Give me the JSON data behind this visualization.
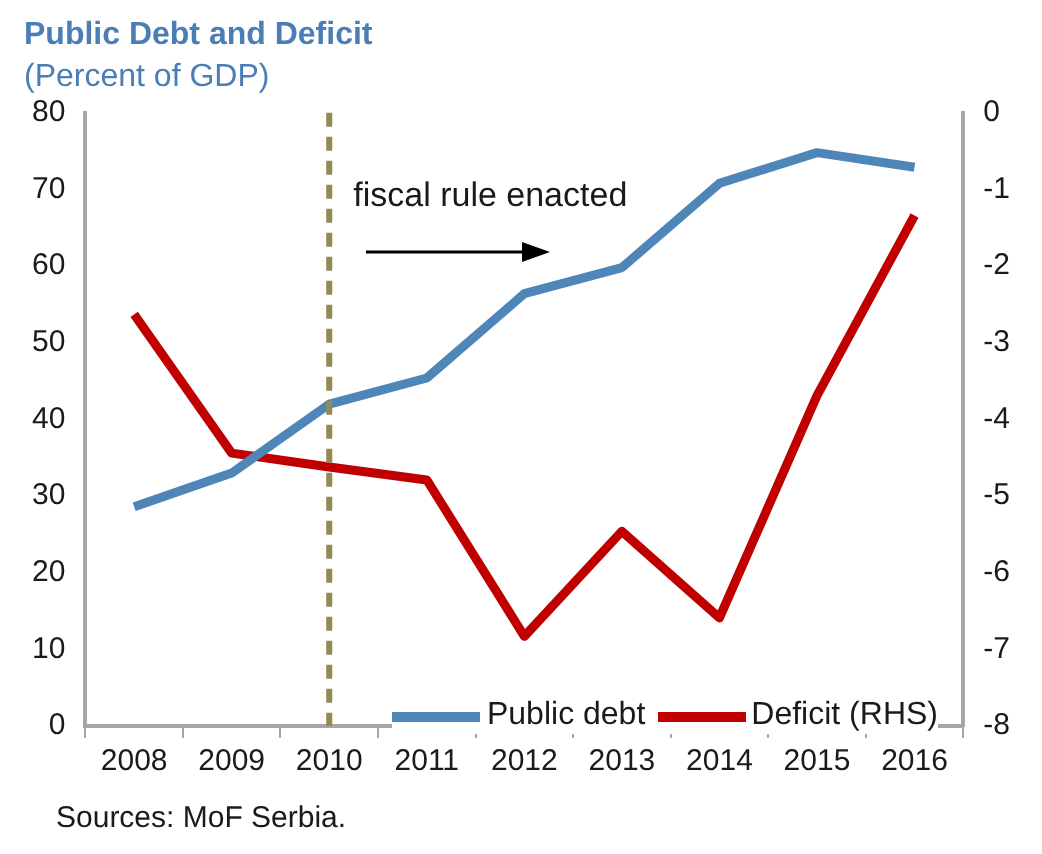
{
  "chart_data": {
    "type": "line",
    "title": "Public Debt and Deficit",
    "subtitle": "(Percent of GDP)",
    "categories": [
      "2008",
      "2009",
      "2010",
      "2011",
      "2012",
      "2013",
      "2014",
      "2015",
      "2016"
    ],
    "series": [
      {
        "name": "Public debt",
        "color": "#4f86b8",
        "values": [
          28.6,
          33.0,
          42.0,
          45.4,
          56.4,
          59.8,
          70.8,
          74.8,
          72.9
        ]
      },
      {
        "name": "Deficit (RHS)",
        "color": "#c00000",
        "axis": "y2",
        "values": [
          -2.63,
          -4.44,
          -4.62,
          -4.79,
          -6.83,
          -5.46,
          -6.59,
          -3.69,
          -1.34
        ]
      }
    ],
    "ylim": [
      0,
      80
    ],
    "yticks": [
      0,
      10,
      20,
      30,
      40,
      50,
      60,
      70,
      80
    ],
    "y2lim": [
      -8,
      0
    ],
    "y2ticks": [
      -8,
      -7,
      -6,
      -5,
      -4,
      -3,
      -2,
      -1,
      0
    ],
    "ref_lines": [
      {
        "axis": "x",
        "value": "2010",
        "label": null,
        "color": "#948a54",
        "line_style": "dashed"
      }
    ],
    "annotations": [
      {
        "text": "fiscal rule enacted",
        "x": "2010",
        "y": 69
      },
      "Sources: MoF Serbia."
    ],
    "legend": "bottom right",
    "grid": false,
    "marker": "none",
    "line_style": "solid"
  }
}
